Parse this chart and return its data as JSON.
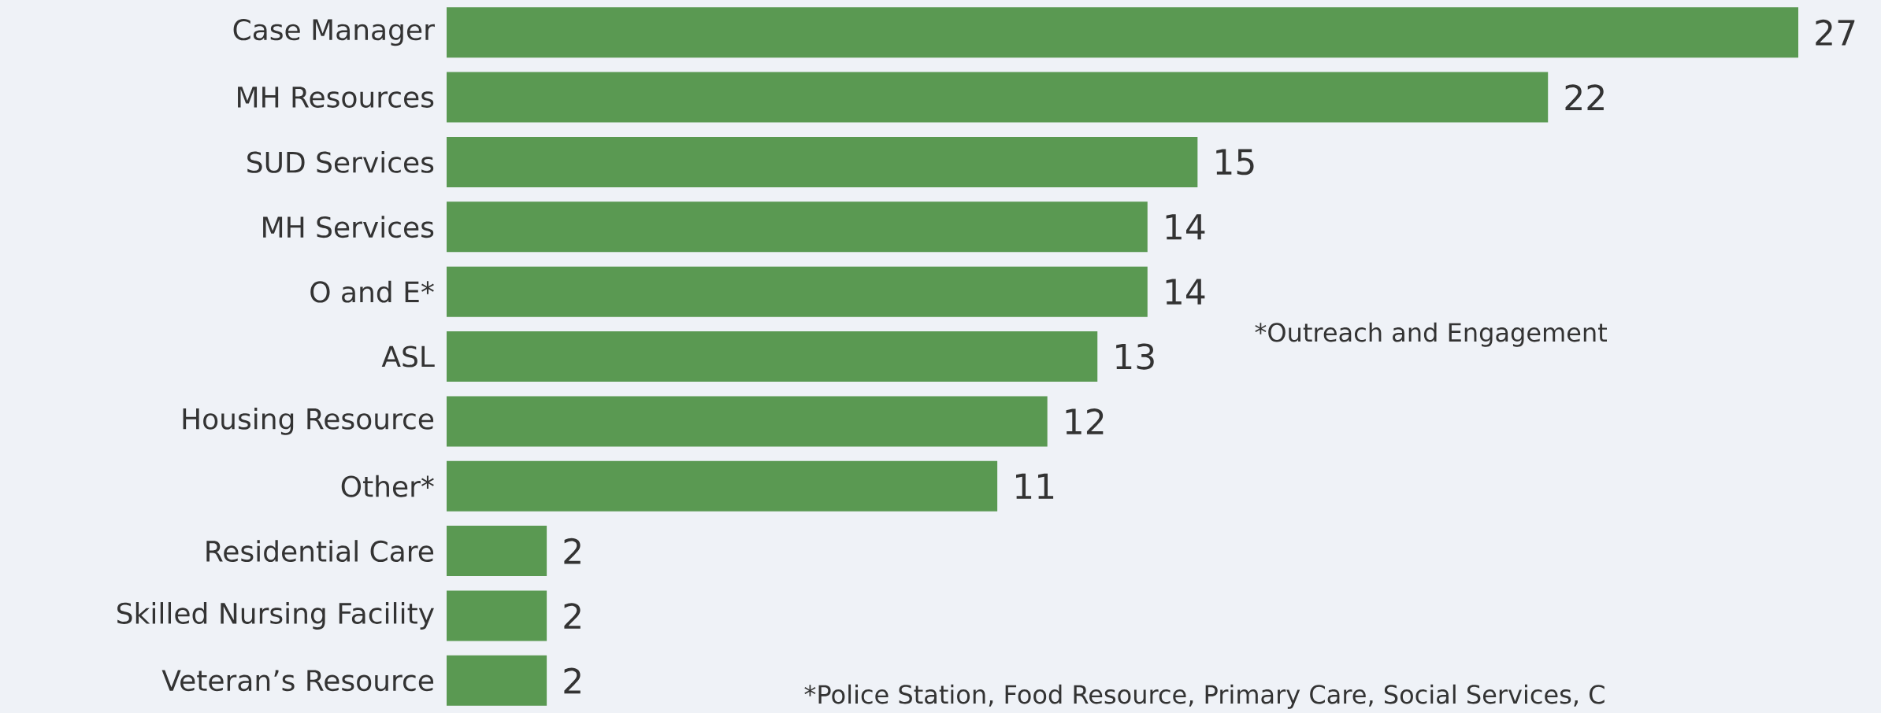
{
  "chart_data": {
    "type": "bar",
    "orientation": "horizontal",
    "data_labels": true,
    "categories": [
      "Case Manager",
      "MH Resources",
      "SUD Services",
      "MH Services",
      "O and E*",
      "ASL",
      "Housing Resource",
      "Other*",
      "Residential Care",
      "Skilled Nursing Facility",
      "Veteran’s Resource"
    ],
    "values": [
      27,
      22,
      15,
      14,
      14,
      13,
      12,
      11,
      2,
      2,
      2
    ],
    "color": "#5a9952",
    "annotations": [
      "*Outreach and Engagement",
      "*Police Station, Food Resource, Primary Care, Social Services, C"
    ]
  }
}
